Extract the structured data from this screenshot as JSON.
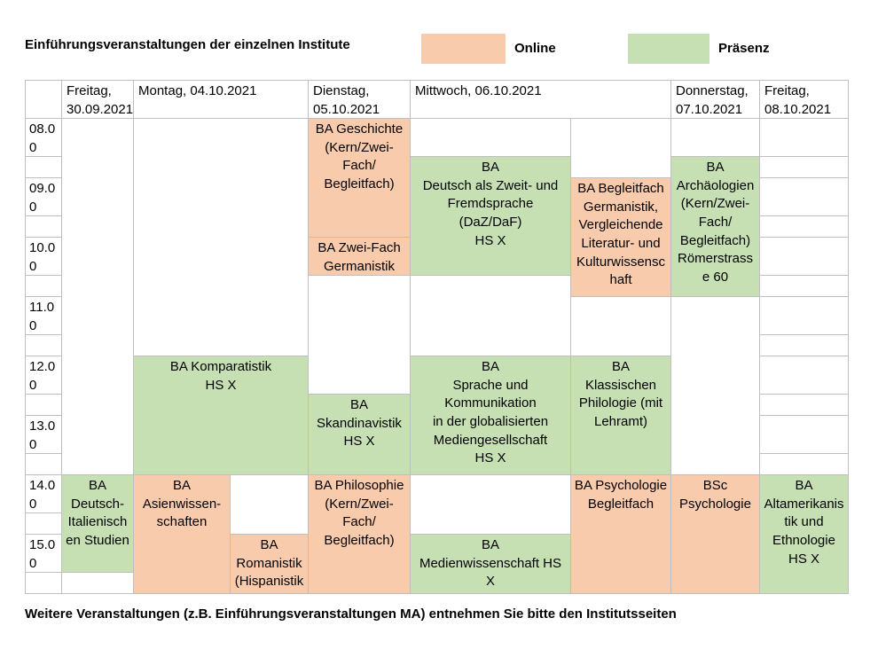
{
  "title": "Einführungsveranstaltungen der einzelnen Institute",
  "legend": {
    "online_label": "Online",
    "praesenz_label": "Präsenz",
    "online_color": "#F8CBAD",
    "praesenz_color": "#C6E0B4",
    "gridline_color": "#bfbfbf"
  },
  "footer": "Weitere Veranstaltungen (z.B. Einführungsveranstaltungen MA) entnehmen Sie bitte den Institutsseiten",
  "grid": {
    "columns": [
      40,
      80,
      108,
      87,
      114,
      180,
      112,
      99,
      99
    ],
    "rows": [
      42,
      42,
      23,
      42,
      23,
      42,
      23,
      42,
      23,
      42,
      23,
      42,
      23,
      42,
      23,
      42,
      23
    ],
    "time_slots": [
      "08.00",
      "09.00",
      "10.00",
      "11.00",
      "12.00",
      "13.00",
      "14.00",
      "15.00"
    ],
    "cells": [
      {
        "name": "header-time",
        "c": 1,
        "r": 1,
        "kind": "header",
        "text": ""
      },
      {
        "name": "header-freitag-3009",
        "c": 2,
        "r": 1,
        "kind": "header",
        "text": "Freitag, 30.09.2021"
      },
      {
        "name": "header-montag",
        "c": 3,
        "cs": 2,
        "r": 1,
        "kind": "header",
        "text": "Montag, 04.10.2021"
      },
      {
        "name": "header-dienstag",
        "c": 5,
        "r": 1,
        "kind": "header",
        "text": "Dienstag, 05.10.2021"
      },
      {
        "name": "header-mittwoch",
        "c": 6,
        "cs": 2,
        "r": 1,
        "kind": "header",
        "text": "Mittwoch, 06.10.2021"
      },
      {
        "name": "header-donnerstag",
        "c": 8,
        "r": 1,
        "kind": "header",
        "text": "Donnerstag, 07.10.2021"
      },
      {
        "name": "header-freitag-0810",
        "c": 9,
        "r": 1,
        "kind": "header",
        "text": "Freitag, 08.10.2021"
      },
      {
        "name": "time-0800",
        "c": 1,
        "r": 2,
        "kind": "time",
        "text": "08.00"
      },
      {
        "name": "time-0830",
        "c": 1,
        "r": 3,
        "kind": "time",
        "text": ""
      },
      {
        "name": "time-0900",
        "c": 1,
        "r": 4,
        "kind": "time",
        "text": "09.00"
      },
      {
        "name": "time-0930",
        "c": 1,
        "r": 5,
        "kind": "time",
        "text": ""
      },
      {
        "name": "time-1000",
        "c": 1,
        "r": 6,
        "kind": "time",
        "text": "10.00"
      },
      {
        "name": "time-1030",
        "c": 1,
        "r": 7,
        "kind": "time",
        "text": ""
      },
      {
        "name": "time-1100",
        "c": 1,
        "r": 8,
        "kind": "time",
        "text": "11.00"
      },
      {
        "name": "time-1130",
        "c": 1,
        "r": 9,
        "kind": "time",
        "text": ""
      },
      {
        "name": "time-1200",
        "c": 1,
        "r": 10,
        "kind": "time",
        "text": "12.00"
      },
      {
        "name": "time-1230",
        "c": 1,
        "r": 11,
        "kind": "time",
        "text": ""
      },
      {
        "name": "time-1300",
        "c": 1,
        "r": 12,
        "kind": "time",
        "text": "13.00"
      },
      {
        "name": "time-1330",
        "c": 1,
        "r": 13,
        "kind": "time",
        "text": ""
      },
      {
        "name": "time-1400",
        "c": 1,
        "r": 14,
        "kind": "time",
        "text": "14.00"
      },
      {
        "name": "time-1430",
        "c": 1,
        "r": 15,
        "kind": "time",
        "text": ""
      },
      {
        "name": "time-1500",
        "c": 1,
        "r": 16,
        "kind": "time",
        "text": "15.00"
      },
      {
        "name": "time-1530",
        "c": 1,
        "r": 17,
        "kind": "time",
        "text": ""
      },
      {
        "name": "empty-cell",
        "c": 2,
        "r": 2,
        "rs": 12,
        "kind": "empty",
        "text": ""
      },
      {
        "name": "event-deutsch-italienische-studien",
        "c": 2,
        "r": 14,
        "rs": 3,
        "kind": "praesenz",
        "text": "BA\nDeutsch-\nItalienischen Studien"
      },
      {
        "name": "empty-cell",
        "c": 2,
        "r": 17,
        "kind": "empty",
        "text": ""
      },
      {
        "name": "empty-cell",
        "c": 3,
        "cs": 2,
        "r": 2,
        "rs": 8,
        "kind": "empty",
        "text": ""
      },
      {
        "name": "event-komparatistik",
        "c": 3,
        "cs": 2,
        "r": 10,
        "rs": 4,
        "kind": "praesenz",
        "text": "BA Komparatistik\nHS X"
      },
      {
        "name": "event-asienwissenschaften",
        "c": 3,
        "r": 14,
        "rs": 4,
        "kind": "online",
        "text": "BA Asienwissen-\nschaften"
      },
      {
        "name": "empty-cell",
        "c": 4,
        "r": 14,
        "rs": 2,
        "kind": "empty",
        "text": ""
      },
      {
        "name": "event-romanistik",
        "c": 4,
        "r": 16,
        "rs": 2,
        "kind": "online",
        "text": "BA\nRomanistik\n(Hispanistik,\nFranzösistik,"
      },
      {
        "name": "event-geschichte",
        "c": 5,
        "r": 2,
        "rs": 4,
        "kind": "online",
        "text": "BA Geschichte\n(Kern/Zwei-Fach/\nBegleitfach)"
      },
      {
        "name": "event-zwei-fach-germanistik",
        "c": 5,
        "r": 6,
        "kind": "online",
        "text": "BA Zwei-Fach\nGermanistik"
      },
      {
        "name": "empty-cell",
        "c": 5,
        "r": 7,
        "rs": 4,
        "kind": "empty",
        "text": ""
      },
      {
        "name": "event-skandinavistik",
        "c": 5,
        "r": 11,
        "rs": 3,
        "kind": "praesenz",
        "text": "BA Skandinavistik\nHS X"
      },
      {
        "name": "event-philosophie",
        "c": 5,
        "r": 14,
        "rs": 4,
        "kind": "online",
        "text": "BA Philosophie\n(Kern/Zwei-Fach/\nBegleitfach)"
      },
      {
        "name": "empty-cell",
        "c": 6,
        "r": 2,
        "kind": "empty",
        "text": ""
      },
      {
        "name": "event-daz-daf",
        "c": 6,
        "r": 3,
        "rs": 4,
        "kind": "praesenz",
        "text": "BA\nDeutsch als Zweit- und\nFremdsprache\n(DaZ/DaF)\nHS X"
      },
      {
        "name": "empty-cell",
        "c": 6,
        "r": 7,
        "rs": 3,
        "kind": "empty",
        "text": ""
      },
      {
        "name": "event-sprache-kommunikation",
        "c": 6,
        "r": 10,
        "rs": 4,
        "kind": "praesenz",
        "text": "BA\nSprache und Kommunikation\nin der globalisierten\nMediengesellschaft\nHS X"
      },
      {
        "name": "empty-cell",
        "c": 6,
        "r": 14,
        "rs": 2,
        "kind": "empty",
        "text": ""
      },
      {
        "name": "event-medienwissenschaft",
        "c": 6,
        "r": 16,
        "rs": 2,
        "kind": "praesenz",
        "text": "BA\nMedienwissenschaft HS X"
      },
      {
        "name": "empty-cell",
        "c": 7,
        "r": 2,
        "rs": 2,
        "kind": "empty",
        "text": ""
      },
      {
        "name": "event-begleitfach-germanistik",
        "c": 7,
        "r": 4,
        "rs": 4,
        "kind": "online",
        "text": "BA Begleitfach\nGermanistik,\nVergleichende\nLiteratur- und\nKulturwissenschaft"
      },
      {
        "name": "empty-cell",
        "c": 7,
        "r": 8,
        "rs": 2,
        "kind": "empty",
        "text": ""
      },
      {
        "name": "event-klassische-philologie",
        "c": 7,
        "r": 10,
        "rs": 4,
        "kind": "praesenz",
        "text": "BA\nKlassischen\nPhilologie (mit\nLehramt)"
      },
      {
        "name": "event-psychologie-begleitfach",
        "c": 7,
        "r": 14,
        "rs": 4,
        "kind": "online",
        "text": "BA Psychologie\nBegleitfach"
      },
      {
        "name": "empty-cell",
        "c": 8,
        "r": 2,
        "kind": "empty",
        "text": ""
      },
      {
        "name": "event-archaeologien",
        "c": 8,
        "r": 3,
        "rs": 5,
        "kind": "praesenz",
        "text": "BA\nArchäologien\n(Kern/Zwei-\nFach/\nBegleitfach)\nRömerstrasse 60"
      },
      {
        "name": "empty-cell",
        "c": 8,
        "r": 8,
        "rs": 6,
        "kind": "empty",
        "text": ""
      },
      {
        "name": "event-bsc-psychologie",
        "c": 8,
        "r": 14,
        "rs": 4,
        "kind": "online",
        "text": "BSc Psychologie"
      },
      {
        "name": "empty-cell",
        "c": 9,
        "r": 2,
        "kind": "empty",
        "text": ""
      },
      {
        "name": "empty-cell",
        "c": 9,
        "r": 3,
        "kind": "empty",
        "text": ""
      },
      {
        "name": "empty-cell",
        "c": 9,
        "r": 4,
        "kind": "empty",
        "text": ""
      },
      {
        "name": "empty-cell",
        "c": 9,
        "r": 5,
        "kind": "empty",
        "text": ""
      },
      {
        "name": "empty-cell",
        "c": 9,
        "r": 6,
        "kind": "empty",
        "text": ""
      },
      {
        "name": "empty-cell",
        "c": 9,
        "r": 7,
        "kind": "empty",
        "text": ""
      },
      {
        "name": "empty-cell",
        "c": 9,
        "r": 8,
        "kind": "empty",
        "text": ""
      },
      {
        "name": "empty-cell",
        "c": 9,
        "r": 9,
        "kind": "empty",
        "text": ""
      },
      {
        "name": "empty-cell",
        "c": 9,
        "r": 10,
        "kind": "empty",
        "text": ""
      },
      {
        "name": "empty-cell",
        "c": 9,
        "r": 11,
        "kind": "empty",
        "text": ""
      },
      {
        "name": "empty-cell",
        "c": 9,
        "r": 12,
        "kind": "empty",
        "text": ""
      },
      {
        "name": "empty-cell",
        "c": 9,
        "r": 13,
        "kind": "empty",
        "text": ""
      },
      {
        "name": "event-altamerikanistik",
        "c": 9,
        "r": 14,
        "rs": 4,
        "kind": "praesenz",
        "text": "BA\nAltamerikanistik und\nEthnologie\nHS X"
      }
    ]
  }
}
